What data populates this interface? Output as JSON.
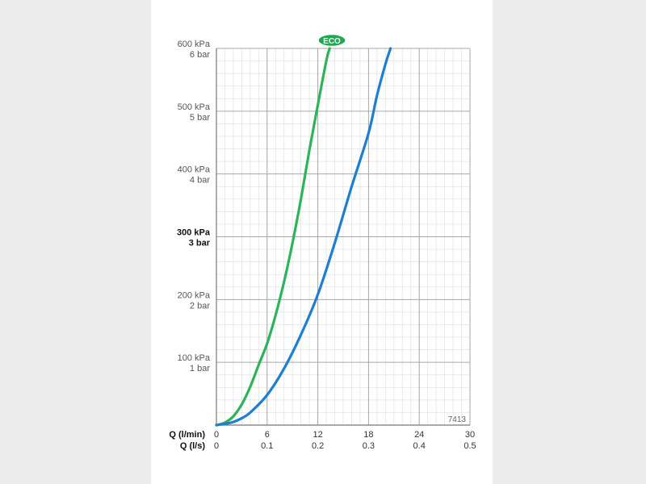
{
  "chart_data": {
    "type": "line",
    "title": "",
    "badge": "ECO",
    "code": "7413",
    "y_ticks": [
      {
        "kpa": "100 kPa",
        "bar": "1 bar",
        "value": 100,
        "bold": false
      },
      {
        "kpa": "200 kPa",
        "bar": "2 bar",
        "value": 200,
        "bold": false
      },
      {
        "kpa": "300 kPa",
        "bar": "3 bar",
        "value": 300,
        "bold": true
      },
      {
        "kpa": "400 kPa",
        "bar": "4 bar",
        "value": 400,
        "bold": false
      },
      {
        "kpa": "500 kPa",
        "bar": "5 bar",
        "value": 500,
        "bold": false
      },
      {
        "kpa": "600 kPa",
        "bar": "6 bar",
        "value": 600,
        "bold": false
      }
    ],
    "ylim": [
      0,
      600
    ],
    "xlim": [
      0,
      30
    ],
    "x_axis_labels": [
      {
        "label": "Q (l/min)",
        "ticks": [
          "0",
          "6",
          "12",
          "18",
          "24",
          "30"
        ]
      },
      {
        "label": "Q (l/s)",
        "ticks": [
          "0",
          "0.1",
          "0.2",
          "0.3",
          "0.4",
          "0.5"
        ]
      }
    ],
    "grid": true,
    "series": [
      {
        "color": "#2db35b",
        "x": [
          0,
          1,
          2,
          3,
          4,
          5,
          6,
          7,
          8,
          9,
          10,
          11,
          12,
          13,
          13.4
        ],
        "y": [
          0,
          4,
          14,
          33,
          61,
          96,
          130,
          175,
          228,
          290,
          360,
          438,
          510,
          580,
          600
        ]
      },
      {
        "color": "#1e7fd0",
        "x": [
          0,
          1,
          2,
          3,
          4,
          6,
          8,
          10,
          12,
          14,
          16,
          18,
          19,
          20,
          20.6
        ],
        "y": [
          0,
          2,
          5,
          11,
          20,
          48,
          90,
          144,
          208,
          290,
          380,
          465,
          525,
          575,
          600
        ]
      }
    ]
  }
}
